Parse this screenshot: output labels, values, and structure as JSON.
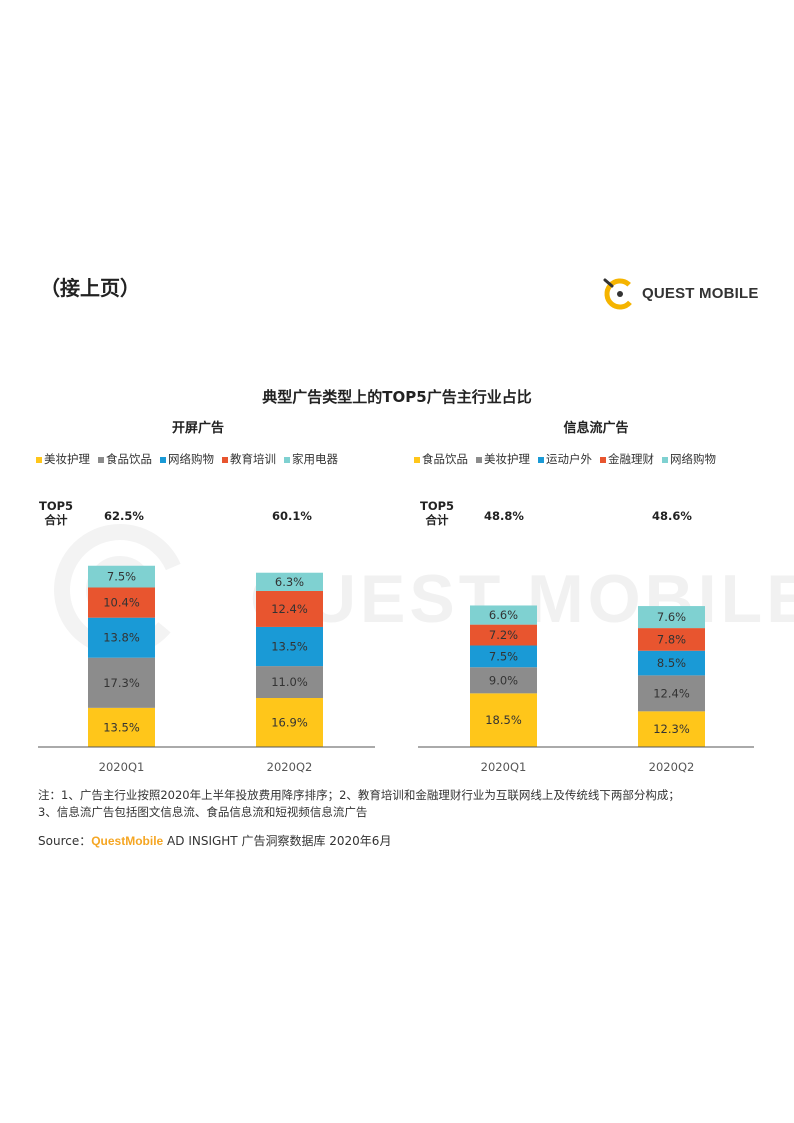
{
  "header": {
    "continued_label": "（接上页）",
    "logo_text": "QUEST MOBILE"
  },
  "watermark_text": "QUEST MOBILE",
  "chart_title": "典型广告类型上的TOP5广告主行业占比",
  "chart_data": [
    {
      "type": "bar",
      "stacked": true,
      "title": "开屏广告",
      "total_label": "TOP5\n合计",
      "categories": [
        "2020Q1",
        "2020Q2"
      ],
      "totals": [
        "62.5%",
        "60.1%"
      ],
      "series": [
        {
          "name": "美妆护理",
          "color": "#ffc61a",
          "values": [
            13.5,
            16.9
          ]
        },
        {
          "name": "食品饮品",
          "color": "#8c8c8c",
          "values": [
            17.3,
            11.0
          ]
        },
        {
          "name": "网络购物",
          "color": "#1a9ad6",
          "values": [
            13.8,
            13.5
          ]
        },
        {
          "name": "教育培训",
          "color": "#e8552f",
          "values": [
            10.4,
            12.4
          ]
        },
        {
          "name": "家用电器",
          "color": "#7fd1d1",
          "values": [
            7.5,
            6.3
          ]
        }
      ],
      "legend_position": "top-left"
    },
    {
      "type": "bar",
      "stacked": true,
      "title": "信息流广告",
      "total_label": "TOP5\n合计",
      "categories": [
        "2020Q1",
        "2020Q2"
      ],
      "totals": [
        "48.8%",
        "48.6%"
      ],
      "series": [
        {
          "name": "食品饮品",
          "color": "#ffc61a",
          "values": [
            18.5,
            12.3
          ]
        },
        {
          "name": "美妆护理",
          "color": "#8c8c8c",
          "values": [
            9.0,
            12.4
          ]
        },
        {
          "name": "运动户外",
          "color": "#1a9ad6",
          "values": [
            7.5,
            8.5
          ]
        },
        {
          "name": "金融理财",
          "color": "#e8552f",
          "values": [
            7.2,
            7.8
          ]
        },
        {
          "name": "网络购物",
          "color": "#7fd1d1",
          "values": [
            6.6,
            7.6
          ]
        }
      ],
      "legend_position": "top-left"
    }
  ],
  "notes": [
    "注：1、广告主行业按照2020年上半年投放费用降序排序；2、教育培训和金融理财行业为互联网线上及传统线下两部分构成；",
    "3、信息流广告包括图文信息流、食品信息流和短视频信息流广告"
  ],
  "source": {
    "prefix": "Source：",
    "brand": "QuestMobile",
    "suffix": " AD INSIGHT 广告洞察数据库 2020年6月"
  }
}
